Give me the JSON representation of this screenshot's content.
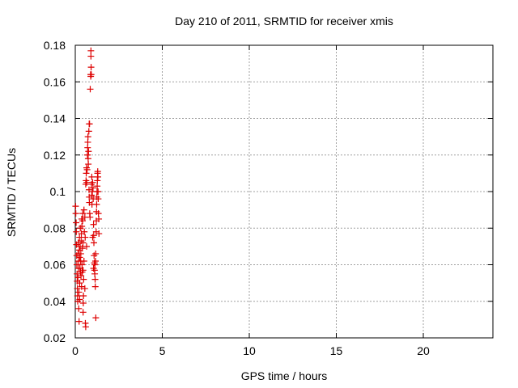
{
  "chart_data": {
    "type": "scatter",
    "title": "Day 210 of 2011, SRMTID for receiver xmis",
    "xlabel": "GPS time / hours",
    "ylabel": "SRMTID / TECUs",
    "xlim": [
      0,
      24
    ],
    "ylim": [
      0.02,
      0.18
    ],
    "xticks": [
      0,
      5,
      10,
      15,
      20
    ],
    "yticks": [
      0.02,
      0.04,
      0.06,
      0.08,
      0.1,
      0.12,
      0.14,
      0.16,
      0.18
    ],
    "ytick_labels": [
      "0.02",
      "0.04",
      "0.06",
      "0.08",
      "0.1",
      "0.12",
      "0.14",
      "0.16",
      "0.18"
    ],
    "grid": true,
    "marker": "+",
    "color": "#dd0000",
    "series": [
      {
        "name": "SRMTID",
        "points": [
          [
            0.02,
            0.092
          ],
          [
            0.03,
            0.088
          ],
          [
            0.05,
            0.083
          ],
          [
            0.06,
            0.078
          ],
          [
            0.07,
            0.071
          ],
          [
            0.08,
            0.065
          ],
          [
            0.09,
            0.06
          ],
          [
            0.1,
            0.055
          ],
          [
            0.11,
            0.051
          ],
          [
            0.12,
            0.047
          ],
          [
            0.13,
            0.043
          ],
          [
            0.14,
            0.04
          ],
          [
            0.15,
            0.053
          ],
          [
            0.16,
            0.066
          ],
          [
            0.17,
            0.072
          ],
          [
            0.18,
            0.058
          ],
          [
            0.19,
            0.062
          ],
          [
            0.2,
            0.036
          ],
          [
            0.21,
            0.045
          ],
          [
            0.22,
            0.029
          ],
          [
            0.23,
            0.068
          ],
          [
            0.24,
            0.075
          ],
          [
            0.25,
            0.05
          ],
          [
            0.26,
            0.064
          ],
          [
            0.27,
            0.058
          ],
          [
            0.28,
            0.07
          ],
          [
            0.29,
            0.08
          ],
          [
            0.3,
            0.056
          ],
          [
            0.31,
            0.062
          ],
          [
            0.32,
            0.066
          ],
          [
            0.33,
            0.054
          ],
          [
            0.34,
            0.073
          ],
          [
            0.35,
            0.077
          ],
          [
            0.36,
            0.048
          ],
          [
            0.37,
            0.085
          ],
          [
            0.38,
            0.081
          ],
          [
            0.39,
            0.06
          ],
          [
            0.4,
            0.056
          ],
          [
            0.41,
            0.069
          ],
          [
            0.42,
            0.084
          ],
          [
            0.43,
            0.088
          ],
          [
            0.44,
            0.072
          ],
          [
            0.45,
            0.057
          ],
          [
            0.46,
            0.039
          ],
          [
            0.47,
            0.043
          ],
          [
            0.48,
            0.052
          ],
          [
            0.5,
            0.062
          ],
          [
            0.52,
            0.078
          ],
          [
            0.55,
            0.047
          ],
          [
            0.58,
            0.028
          ],
          [
            0.6,
            0.026
          ],
          [
            0.55,
            0.086
          ],
          [
            0.5,
            0.09
          ],
          [
            0.57,
            0.075
          ],
          [
            0.6,
            0.104
          ],
          [
            0.62,
            0.106
          ],
          [
            0.63,
            0.11
          ],
          [
            0.65,
            0.113
          ],
          [
            0.66,
            0.105
          ],
          [
            0.68,
            0.112
          ],
          [
            0.7,
            0.12
          ],
          [
            0.71,
            0.124
          ],
          [
            0.72,
            0.127
          ],
          [
            0.73,
            0.13
          ],
          [
            0.74,
            0.118
          ],
          [
            0.75,
            0.115
          ],
          [
            0.76,
            0.122
          ],
          [
            0.78,
            0.133
          ],
          [
            0.8,
            0.137
          ],
          [
            0.82,
            0.137
          ],
          [
            0.79,
            0.101
          ],
          [
            0.8,
            0.097
          ],
          [
            0.81,
            0.094
          ],
          [
            0.83,
            0.088
          ],
          [
            0.85,
            0.086
          ],
          [
            0.86,
            0.156
          ],
          [
            0.88,
            0.164
          ],
          [
            0.89,
            0.163
          ],
          [
            0.9,
            0.174
          ],
          [
            0.9,
            0.177
          ],
          [
            0.91,
            0.168
          ],
          [
            0.92,
            0.164
          ],
          [
            0.93,
            0.104
          ],
          [
            0.95,
            0.098
          ],
          [
            0.96,
            0.093
          ],
          [
            0.98,
            0.1
          ],
          [
            1.0,
            0.105
          ],
          [
            1.02,
            0.102
          ],
          [
            1.03,
            0.096
          ],
          [
            1.05,
            0.082
          ],
          [
            1.06,
            0.076
          ],
          [
            1.07,
            0.072
          ],
          [
            1.08,
            0.065
          ],
          [
            1.1,
            0.061
          ],
          [
            1.11,
            0.057
          ],
          [
            1.12,
            0.055
          ],
          [
            1.13,
            0.06
          ],
          [
            1.14,
            0.052
          ],
          [
            1.15,
            0.048
          ],
          [
            1.16,
            0.062
          ],
          [
            1.17,
            0.066
          ],
          [
            1.18,
            0.031
          ],
          [
            1.2,
            0.078
          ],
          [
            1.21,
            0.084
          ],
          [
            1.22,
            0.089
          ],
          [
            1.23,
            0.093
          ],
          [
            1.24,
            0.097
          ],
          [
            1.25,
            0.1
          ],
          [
            1.26,
            0.103
          ],
          [
            1.27,
            0.106
          ],
          [
            1.28,
            0.11
          ],
          [
            1.29,
            0.111
          ],
          [
            1.3,
            0.108
          ],
          [
            1.31,
            0.1
          ],
          [
            1.32,
            0.096
          ],
          [
            1.33,
            0.088
          ],
          [
            1.35,
            0.085
          ],
          [
            1.36,
            0.077
          ],
          [
            1.0,
            0.075
          ],
          [
            1.05,
            0.058
          ],
          [
            0.95,
            0.108
          ],
          [
            0.65,
            0.07
          ],
          [
            0.45,
            0.034
          ],
          [
            0.25,
            0.041
          ]
        ]
      }
    ]
  }
}
